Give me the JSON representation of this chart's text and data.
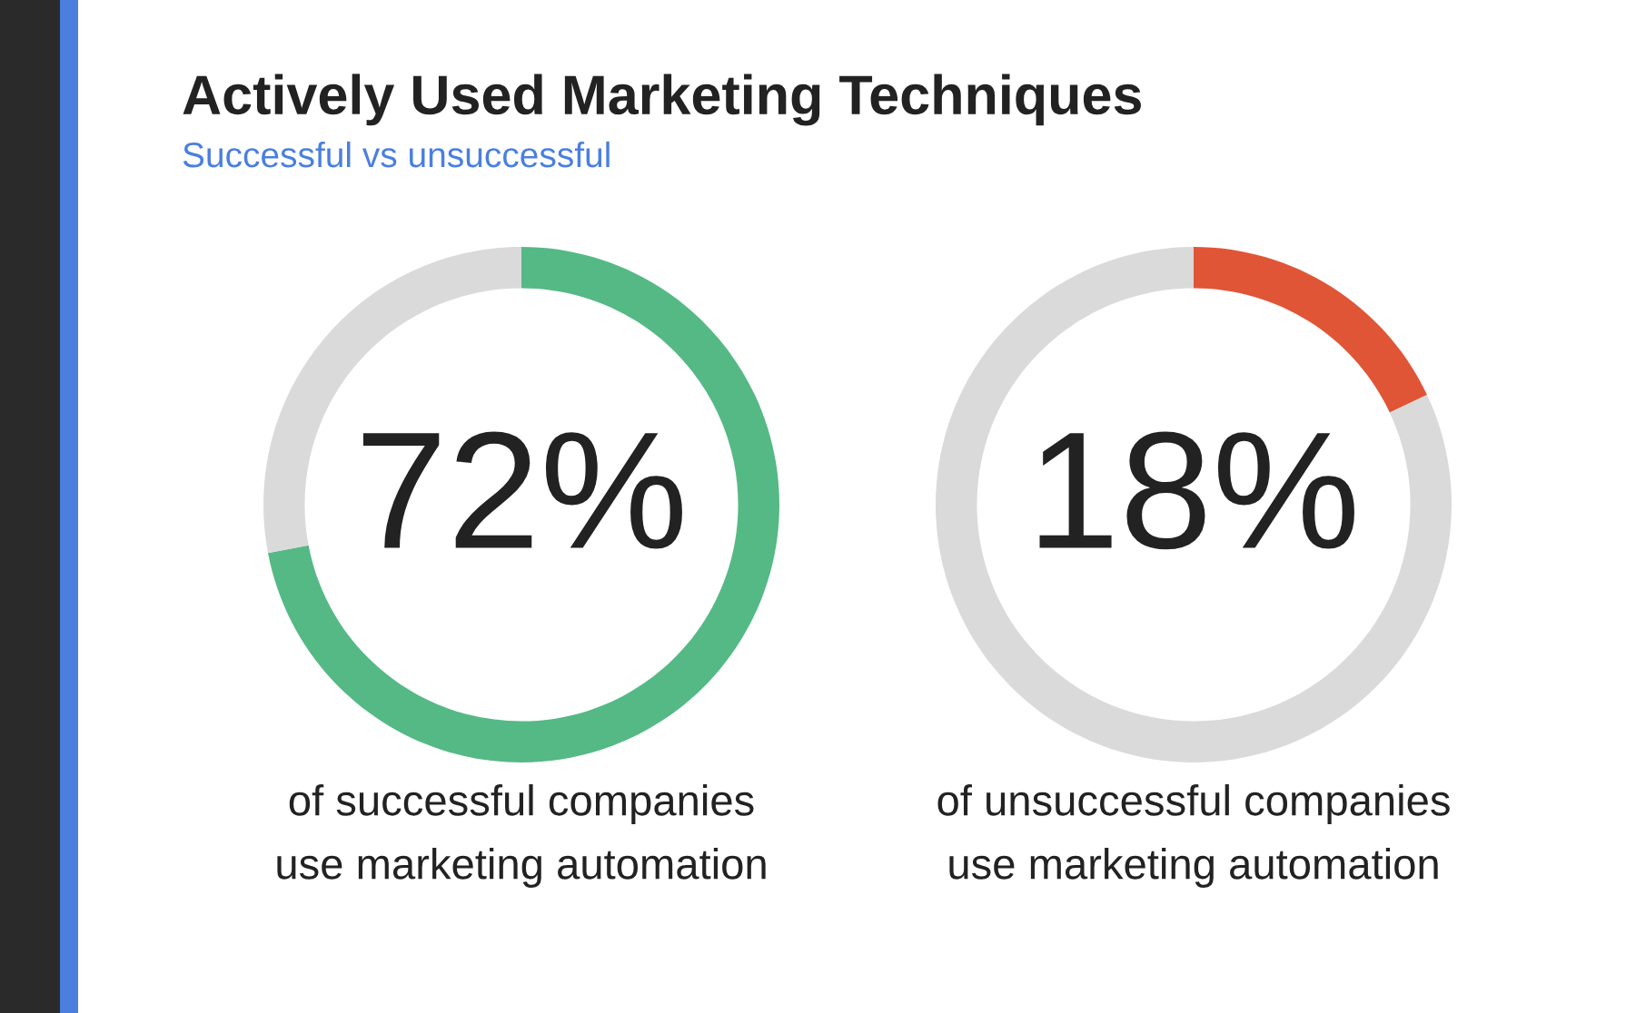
{
  "chart_data": [
    {
      "type": "donut",
      "title": "Actively Used Marketing Techniques",
      "subtitle": "Successful vs unsuccessful",
      "categories": [
        null,
        null
      ],
      "values": [
        72,
        28
      ],
      "colors": [
        "#55b985",
        "#dadada"
      ],
      "value_labels": [
        "72%",
        null
      ],
      "annotations": [
        "of successful companies",
        "use marketing automation"
      ]
    },
    {
      "type": "donut",
      "categories": [
        null,
        null
      ],
      "values": [
        18,
        82
      ],
      "colors": [
        "#e05536",
        "#dadada"
      ],
      "value_labels": [
        "18%",
        null
      ],
      "annotations": [
        "of unsuccessful companies",
        "use marketing automation"
      ]
    }
  ]
}
